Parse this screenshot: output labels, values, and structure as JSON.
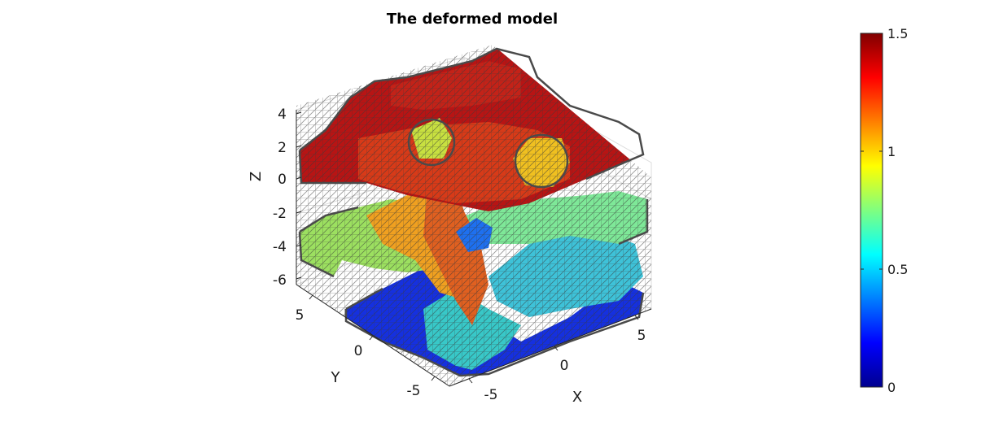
{
  "figure": {
    "title": "The deformed model"
  },
  "chart_data": {
    "type": "3d-surface-mesh",
    "title": "The deformed model",
    "xlabel": "X",
    "ylabel": "Y",
    "zlabel": "Z",
    "xticks": [
      "-5",
      "0",
      "5"
    ],
    "yticks": [
      "-5",
      "0",
      "5"
    ],
    "zticks": [
      "4",
      "2",
      "0",
      "-2",
      "-4",
      "-6"
    ],
    "colormap": "jet",
    "clim": [
      0,
      1.5
    ],
    "colorbar": {
      "ticks": [
        "0",
        "0.5",
        "1",
        "1.5"
      ],
      "tick_values": [
        0,
        0.5,
        1,
        1.5
      ],
      "placement": "right"
    },
    "mesh_edge_color": "#404040",
    "grid": true
  }
}
